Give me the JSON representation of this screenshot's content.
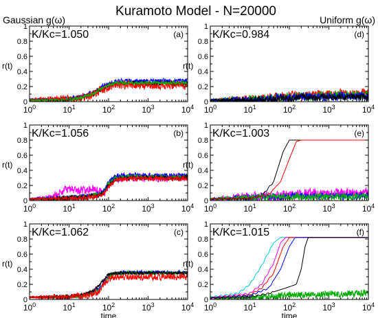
{
  "figure": {
    "title": "Kuramoto Model - N=20000",
    "col_left_title": "Gaussian g(ω)",
    "col_right_title": "Uniform g(ω)"
  },
  "chart_data": [
    {
      "type": "line",
      "panel": "(a)",
      "label": "K/Kc=1.050",
      "column": "Gaussian g(ω)",
      "xscale": "log",
      "xlim": [
        1,
        10000
      ],
      "ylim": [
        0,
        1
      ],
      "xticks": [
        "10^0",
        "10^1",
        "10^2",
        "10^3",
        "10^4"
      ],
      "yticks": [
        "0",
        "0.2",
        "0.4",
        "0.6",
        "0.8",
        "1"
      ],
      "ylabel": "r(t)",
      "xlabel": "",
      "series": [
        {
          "color": "#0000ff",
          "x": [
            1,
            5,
            10,
            20,
            40,
            60,
            100,
            150,
            300,
            1000,
            10000
          ],
          "y": [
            0.03,
            0.03,
            0.04,
            0.06,
            0.12,
            0.18,
            0.24,
            0.27,
            0.27,
            0.27,
            0.28
          ],
          "noise": 0.03
        },
        {
          "color": "#000000",
          "x": [
            1,
            5,
            10,
            20,
            40,
            60,
            100,
            150,
            300,
            1000,
            10000
          ],
          "y": [
            0.02,
            0.02,
            0.03,
            0.05,
            0.1,
            0.15,
            0.21,
            0.24,
            0.24,
            0.24,
            0.24
          ],
          "noise": 0.03
        },
        {
          "color": "#ff0000",
          "x": [
            1,
            5,
            10,
            20,
            40,
            60,
            100,
            150,
            300,
            1000,
            10000
          ],
          "y": [
            0.03,
            0.03,
            0.03,
            0.05,
            0.09,
            0.14,
            0.19,
            0.22,
            0.22,
            0.22,
            0.22
          ],
          "noise": 0.05
        },
        {
          "color": "#00aa00",
          "x": [
            1,
            5,
            10,
            20,
            40,
            60,
            100,
            150,
            300,
            1000,
            10000
          ],
          "y": [
            0.02,
            0.02,
            0.03,
            0.05,
            0.1,
            0.16,
            0.22,
            0.25,
            0.25,
            0.25,
            0.25
          ],
          "noise": 0.02
        }
      ]
    },
    {
      "type": "line",
      "panel": "(d)",
      "label": "K/Kc=0.984",
      "column": "Uniform g(ω)",
      "xscale": "log",
      "xlim": [
        1,
        10000
      ],
      "ylim": [
        0,
        1
      ],
      "xticks": [
        "10^0",
        "10^1",
        "10^2",
        "10^3",
        "10^4"
      ],
      "yticks": [
        "0",
        "0.2",
        "0.4",
        "0.6",
        "0.8",
        "1"
      ],
      "ylabel": "r(t)",
      "xlabel": "",
      "series": [
        {
          "color": "#ff0000",
          "x": [
            1,
            10,
            30,
            100,
            1000,
            10000
          ],
          "y": [
            0.02,
            0.03,
            0.05,
            0.08,
            0.1,
            0.12
          ],
          "noise": 0.05
        },
        {
          "color": "#00aa00",
          "x": [
            1,
            10,
            30,
            100,
            1000,
            10000
          ],
          "y": [
            0.02,
            0.03,
            0.04,
            0.07,
            0.08,
            0.08
          ],
          "noise": 0.05
        },
        {
          "color": "#0000ff",
          "x": [
            1,
            10,
            30,
            100,
            1000,
            10000
          ],
          "y": [
            0.02,
            0.02,
            0.04,
            0.06,
            0.07,
            0.07
          ],
          "noise": 0.05
        },
        {
          "color": "#000000",
          "x": [
            1,
            10,
            30,
            100,
            1000,
            10000
          ],
          "y": [
            0.02,
            0.02,
            0.03,
            0.05,
            0.06,
            0.06
          ],
          "noise": 0.04
        }
      ]
    },
    {
      "type": "line",
      "panel": "(b)",
      "label": "K/Kc=1.056",
      "column": "Gaussian g(ω)",
      "xscale": "log",
      "xlim": [
        1,
        10000
      ],
      "ylim": [
        0,
        1
      ],
      "xticks": [
        "10^0",
        "10^1",
        "10^2",
        "10^3",
        "10^4"
      ],
      "yticks": [
        "0",
        "0.2",
        "0.4",
        "0.6",
        "0.8",
        "1"
      ],
      "ylabel": "r(t)",
      "xlabel": "",
      "series": [
        {
          "color": "#ff00ff",
          "x": [
            1,
            3,
            6,
            10,
            20,
            40,
            60,
            80,
            100,
            150,
            300,
            1000,
            10000
          ],
          "y": [
            0.02,
            0.04,
            0.1,
            0.16,
            0.12,
            0.15,
            0.12,
            0.1,
            0.2,
            0.3,
            0.3,
            0.3,
            0.3
          ],
          "noise": 0.05
        },
        {
          "color": "#0000ff",
          "x": [
            1,
            10,
            30,
            60,
            80,
            100,
            150,
            300,
            1000,
            10000
          ],
          "y": [
            0.02,
            0.04,
            0.06,
            0.09,
            0.13,
            0.25,
            0.32,
            0.33,
            0.33,
            0.33
          ],
          "noise": 0.03
        },
        {
          "color": "#00aa00",
          "x": [
            1,
            10,
            30,
            60,
            80,
            100,
            150,
            300,
            1000,
            10000
          ],
          "y": [
            0.02,
            0.03,
            0.05,
            0.08,
            0.12,
            0.22,
            0.3,
            0.31,
            0.31,
            0.31
          ],
          "noise": 0.03
        },
        {
          "color": "#000000",
          "x": [
            1,
            10,
            30,
            60,
            80,
            100,
            150,
            300,
            1000,
            10000
          ],
          "y": [
            0.02,
            0.03,
            0.05,
            0.07,
            0.11,
            0.2,
            0.28,
            0.3,
            0.3,
            0.3
          ],
          "noise": 0.03
        },
        {
          "color": "#ff0000",
          "x": [
            1,
            10,
            30,
            60,
            80,
            100,
            150,
            300,
            1000,
            10000
          ],
          "y": [
            0.02,
            0.03,
            0.04,
            0.06,
            0.1,
            0.18,
            0.27,
            0.29,
            0.29,
            0.29
          ],
          "noise": 0.03
        }
      ]
    },
    {
      "type": "line",
      "panel": "(e)",
      "label": "K/Kc=1.003",
      "column": "Uniform g(ω)",
      "xscale": "log",
      "xlim": [
        1,
        10000
      ],
      "ylim": [
        0,
        1
      ],
      "xticks": [
        "10^0",
        "10^1",
        "10^2",
        "10^3",
        "10^4"
      ],
      "yticks": [
        "0",
        "0.2",
        "0.4",
        "0.6",
        "0.8",
        "1"
      ],
      "ylabel": "r(t)",
      "xlabel": "",
      "series": [
        {
          "color": "#ff00ff",
          "x": [
            1,
            10,
            30,
            100,
            1000,
            10000
          ],
          "y": [
            0.02,
            0.04,
            0.06,
            0.08,
            0.1,
            0.1
          ],
          "noise": 0.06
        },
        {
          "color": "#0000ff",
          "x": [
            1,
            10,
            30,
            100,
            1000,
            10000
          ],
          "y": [
            0.02,
            0.04,
            0.05,
            0.06,
            0.06,
            0.06
          ],
          "noise": 0.04
        },
        {
          "color": "#00aa00",
          "x": [
            1,
            10,
            30,
            100,
            1000,
            10000
          ],
          "y": [
            0.02,
            0.04,
            0.05,
            0.05,
            0.05,
            0.05
          ],
          "noise": 0.04
        },
        {
          "color": "#000000",
          "x": [
            1,
            10,
            20,
            40,
            70,
            100,
            150,
            10000
          ],
          "y": [
            0.02,
            0.03,
            0.06,
            0.25,
            0.65,
            0.8,
            0.8,
            0.8
          ],
          "noise": 0.0
        },
        {
          "color": "#ff0000",
          "x": [
            1,
            10,
            30,
            60,
            100,
            150,
            200,
            10000
          ],
          "y": [
            0.02,
            0.03,
            0.08,
            0.25,
            0.55,
            0.78,
            0.8,
            0.8
          ],
          "noise": 0.0
        }
      ]
    },
    {
      "type": "line",
      "panel": "(c)",
      "label": "K/Kc=1.062",
      "column": "Gaussian g(ω)",
      "xscale": "log",
      "xlim": [
        1,
        10000
      ],
      "ylim": [
        0,
        1
      ],
      "xticks": [
        "10^0",
        "10^1",
        "10^2",
        "10^3",
        "10^4"
      ],
      "yticks": [
        "0",
        "0.2",
        "0.4",
        "0.6",
        "0.8",
        "1"
      ],
      "ylabel": "r(t)",
      "xlabel": "time",
      "series": [
        {
          "color": "#0000ff",
          "x": [
            1,
            10,
            20,
            40,
            60,
            80,
            100,
            150,
            300,
            1000,
            10000
          ],
          "y": [
            0.03,
            0.03,
            0.05,
            0.09,
            0.16,
            0.25,
            0.31,
            0.35,
            0.36,
            0.36,
            0.36
          ],
          "noise": 0.02
        },
        {
          "color": "#00aa00",
          "x": [
            1,
            10,
            20,
            40,
            60,
            80,
            100,
            150,
            300,
            1000,
            10000
          ],
          "y": [
            0.03,
            0.03,
            0.05,
            0.08,
            0.14,
            0.23,
            0.3,
            0.34,
            0.35,
            0.35,
            0.35
          ],
          "noise": 0.02
        },
        {
          "color": "#000000",
          "x": [
            1,
            10,
            20,
            40,
            60,
            80,
            100,
            150,
            300,
            1000,
            10000
          ],
          "y": [
            0.03,
            0.04,
            0.06,
            0.11,
            0.2,
            0.28,
            0.33,
            0.35,
            0.35,
            0.35,
            0.35
          ],
          "noise": 0.02
        },
        {
          "color": "#ff0000",
          "x": [
            1,
            10,
            20,
            40,
            60,
            80,
            100,
            150,
            300,
            1000,
            10000
          ],
          "y": [
            0.03,
            0.03,
            0.04,
            0.07,
            0.12,
            0.2,
            0.27,
            0.3,
            0.3,
            0.3,
            0.3
          ],
          "noise": 0.04
        }
      ]
    },
    {
      "type": "line",
      "panel": "(f)",
      "label": "K/Kc=1.015",
      "column": "Uniform g(ω)",
      "xscale": "log",
      "xlim": [
        1,
        10000
      ],
      "ylim": [
        0,
        1
      ],
      "xticks": [
        "10^0",
        "10^1",
        "10^2",
        "10^3",
        "10^4"
      ],
      "yticks": [
        "0",
        "0.2",
        "0.4",
        "0.6",
        "0.8",
        "1"
      ],
      "ylabel": "r(t)",
      "xlabel": "time",
      "series": [
        {
          "color": "#00aa00",
          "x": [
            1,
            10,
            30,
            100,
            300,
            1000,
            10000
          ],
          "y": [
            0.02,
            0.03,
            0.04,
            0.06,
            0.06,
            0.07,
            0.08
          ],
          "noise": 0.04
        },
        {
          "color": "#00cccc",
          "x": [
            1,
            5,
            10,
            20,
            40,
            60,
            10000
          ],
          "y": [
            0.03,
            0.08,
            0.2,
            0.45,
            0.75,
            0.82,
            0.82
          ],
          "noise": 0.0
        },
        {
          "color": "#ff00ff",
          "x": [
            1,
            10,
            20,
            40,
            60,
            80,
            10000
          ],
          "y": [
            0.02,
            0.08,
            0.2,
            0.48,
            0.75,
            0.82,
            0.82
          ],
          "noise": 0.0
        },
        {
          "color": "#ff0000",
          "x": [
            1,
            10,
            20,
            40,
            70,
            100,
            10000
          ],
          "y": [
            0.02,
            0.06,
            0.15,
            0.35,
            0.7,
            0.82,
            0.82
          ],
          "noise": 0.0
        },
        {
          "color": "#0000ff",
          "x": [
            1,
            10,
            30,
            60,
            100,
            140,
            10000
          ],
          "y": [
            0.02,
            0.05,
            0.15,
            0.4,
            0.7,
            0.82,
            0.82
          ],
          "noise": 0.0
        },
        {
          "color": "#000000",
          "x": [
            1,
            10,
            30,
            80,
            150,
            200,
            250,
            300,
            10000
          ],
          "y": [
            0.02,
            0.03,
            0.08,
            0.15,
            0.2,
            0.4,
            0.7,
            0.82,
            0.82
          ],
          "noise": 0.0
        }
      ]
    }
  ]
}
